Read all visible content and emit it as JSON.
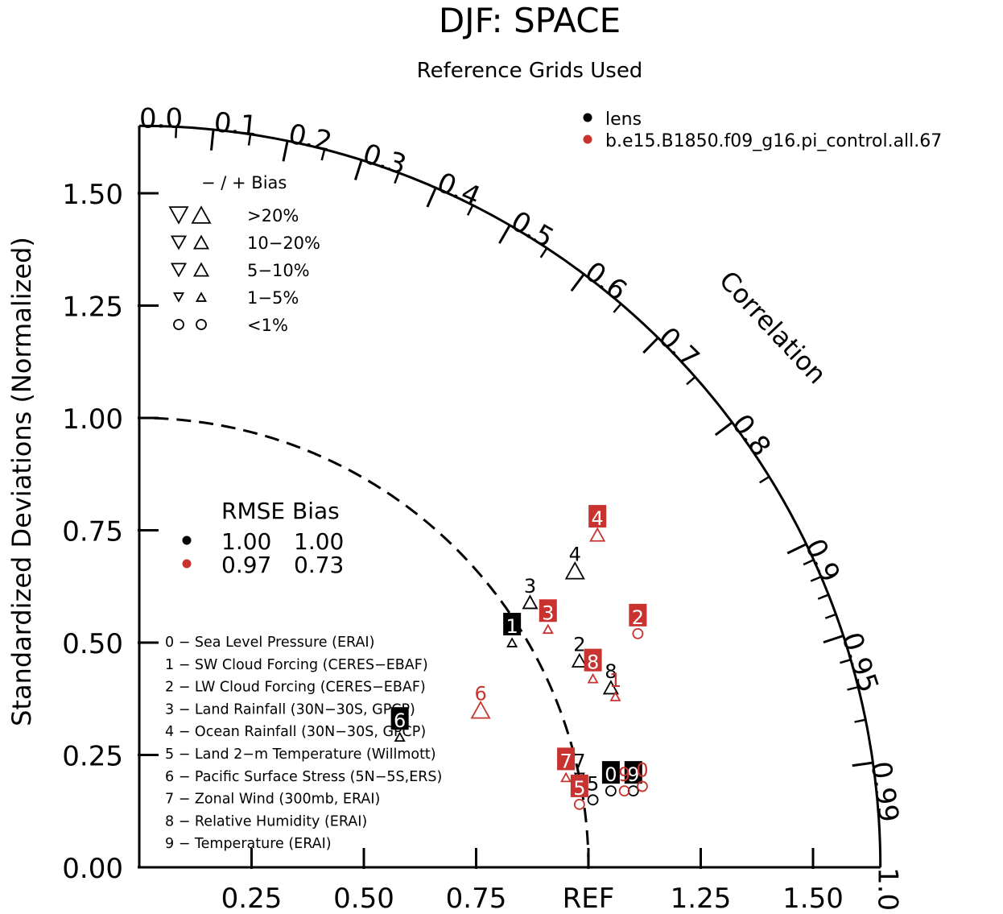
{
  "colors": {
    "model1": "#000000",
    "model2": "#c8322f",
    "axis": "#000000"
  },
  "chart_data": {
    "type": "scatter",
    "subtype": "taylor-diagram",
    "title": "DJF: SPACE",
    "subtitle": "Reference Grids Used",
    "ylabel": "Standardized Deviations (Normalized)",
    "correlation_label": "Correlation",
    "ref_label": "REF",
    "std_max": 1.65,
    "y_ticks": [
      "0.00",
      "0.25",
      "0.50",
      "0.75",
      "1.00",
      "1.25",
      "1.50"
    ],
    "x_ticks": [
      "0.25",
      "0.50",
      "0.75",
      "REF",
      "1.25",
      "1.50"
    ],
    "corr_ticks": [
      "0.0",
      "0.1",
      "0.2",
      "0.3",
      "0.4",
      "0.5",
      "0.6",
      "0.7",
      "0.8",
      "0.9",
      "0.95",
      "0.99",
      "1.0"
    ],
    "legend_models": [
      {
        "name": "lens",
        "color": "#000000"
      },
      {
        "name": "b.e15.B1850.f09_g16.pi_control.all.67",
        "color": "#c8322f"
      }
    ],
    "bias_legend": {
      "header": "−  /  +     Bias",
      "rows": [
        ">20%",
        "10−20%",
        "5−10%",
        "1−5%",
        "<1%"
      ]
    },
    "rmse_bias": {
      "header": "RMSE Bias",
      "rows": [
        {
          "color": "#000000",
          "rmse": "1.00",
          "bias": "1.00"
        },
        {
          "color": "#c8322f",
          "rmse": "0.97",
          "bias": "0.73"
        }
      ]
    },
    "variables": [
      "0 − Sea Level Pressure (ERAI)",
      "1 − SW Cloud Forcing (CERES−EBAF)",
      "2 − LW Cloud Forcing (CERES−EBAF)",
      "3 − Land Rainfall (30N−30S, GPCP)",
      "4 − Ocean Rainfall (30N−30S, GPCP)",
      "5 − Land 2−m Temperature (Willmott)",
      "6 − Pacific Surface Stress (5N−5S,ERS)",
      "7 − Zonal Wind (300mb, ERAI)",
      "8 − Relative Humidity (ERAI)",
      "9 − Temperature (ERAI)"
    ],
    "series": [
      {
        "name": "lens",
        "color": "#000000",
        "points": [
          {
            "label": "0",
            "x": 1.05,
            "y": 0.17,
            "marker": "circle",
            "boxed": true
          },
          {
            "label": "1",
            "x": 0.83,
            "y": 0.5,
            "marker": "up-small",
            "boxed": true
          },
          {
            "label": "2",
            "x": 0.98,
            "y": 0.46,
            "marker": "up-med",
            "boxed": false
          },
          {
            "label": "3",
            "x": 0.87,
            "y": 0.59,
            "marker": "up-med",
            "boxed": false
          },
          {
            "label": "4",
            "x": 0.97,
            "y": 0.66,
            "marker": "up-large",
            "boxed": false
          },
          {
            "label": "5",
            "x": 1.01,
            "y": 0.15,
            "marker": "circle",
            "boxed": false
          },
          {
            "label": "6",
            "x": 0.58,
            "y": 0.29,
            "marker": "up-small",
            "boxed": true
          },
          {
            "label": "7",
            "x": 0.98,
            "y": 0.2,
            "marker": "down-small",
            "boxed": false
          },
          {
            "label": "8",
            "x": 1.05,
            "y": 0.4,
            "marker": "up-med",
            "boxed": false
          },
          {
            "label": "9",
            "x": 1.1,
            "y": 0.17,
            "marker": "circle",
            "boxed": true
          }
        ]
      },
      {
        "name": "b.e15.B1850.f09_g16.pi_control.all.67",
        "color": "#c8322f",
        "points": [
          {
            "label": "0",
            "x": 1.12,
            "y": 0.18,
            "marker": "circle",
            "boxed": false
          },
          {
            "label": "1",
            "x": 1.06,
            "y": 0.38,
            "marker": "up-small",
            "boxed": false
          },
          {
            "label": "2",
            "x": 1.11,
            "y": 0.52,
            "marker": "circle",
            "boxed": true
          },
          {
            "label": "3",
            "x": 0.91,
            "y": 0.53,
            "marker": "up-small",
            "boxed": true
          },
          {
            "label": "4",
            "x": 1.02,
            "y": 0.74,
            "marker": "up-med",
            "boxed": true
          },
          {
            "label": "5",
            "x": 0.98,
            "y": 0.14,
            "marker": "circle",
            "boxed": true
          },
          {
            "label": "6",
            "x": 0.76,
            "y": 0.35,
            "marker": "up-large",
            "boxed": false
          },
          {
            "label": "7",
            "x": 0.95,
            "y": 0.2,
            "marker": "up-small",
            "boxed": true
          },
          {
            "label": "8",
            "x": 1.01,
            "y": 0.42,
            "marker": "up-small",
            "boxed": true
          },
          {
            "label": "9",
            "x": 1.08,
            "y": 0.17,
            "marker": "circle",
            "boxed": false
          }
        ]
      }
    ]
  }
}
